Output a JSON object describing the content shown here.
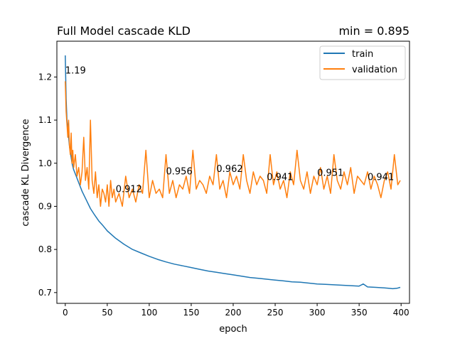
{
  "chart_data": {
    "type": "line",
    "title": "Full Model cascade KLD",
    "title_right": "min = 0.895",
    "xlabel": "epoch",
    "ylabel": "cascade KL Divergence",
    "xlim": [
      -10,
      410
    ],
    "ylim": [
      0.675,
      1.283
    ],
    "xticks": [
      0,
      50,
      100,
      150,
      200,
      250,
      300,
      350,
      400
    ],
    "yticks": [
      0.7,
      0.8,
      0.9,
      1.0,
      1.1,
      1.2
    ],
    "ytick_labels": [
      "0.7",
      "0.8",
      "0.9",
      "1.0",
      "1.1",
      "1.2"
    ],
    "grid": false,
    "legend_position": "top-right",
    "series": [
      {
        "name": "train",
        "color": "#1f77b4",
        "x": [
          0,
          1,
          2,
          3,
          5,
          8,
          10,
          12,
          15,
          20,
          25,
          30,
          35,
          40,
          45,
          50,
          60,
          70,
          80,
          90,
          100,
          110,
          120,
          130,
          140,
          150,
          160,
          170,
          180,
          190,
          200,
          210,
          220,
          230,
          240,
          250,
          260,
          270,
          280,
          290,
          300,
          310,
          320,
          330,
          340,
          350,
          355,
          360,
          370,
          380,
          385,
          390,
          395,
          399
        ],
        "y": [
          1.25,
          1.15,
          1.1,
          1.08,
          1.04,
          1.0,
          0.985,
          0.975,
          0.96,
          0.935,
          0.915,
          0.895,
          0.88,
          0.866,
          0.855,
          0.843,
          0.826,
          0.812,
          0.8,
          0.792,
          0.784,
          0.777,
          0.771,
          0.766,
          0.762,
          0.758,
          0.754,
          0.75,
          0.747,
          0.744,
          0.741,
          0.738,
          0.735,
          0.733,
          0.731,
          0.729,
          0.727,
          0.725,
          0.724,
          0.722,
          0.72,
          0.719,
          0.718,
          0.717,
          0.716,
          0.715,
          0.72,
          0.713,
          0.712,
          0.711,
          0.71,
          0.709,
          0.71,
          0.712
        ]
      },
      {
        "name": "validation",
        "color": "#ff7f0e",
        "x": [
          0,
          1,
          2,
          3,
          4,
          5,
          6,
          7,
          8,
          9,
          10,
          12,
          14,
          16,
          18,
          20,
          22,
          24,
          26,
          28,
          30,
          32,
          34,
          36,
          38,
          40,
          42,
          44,
          46,
          48,
          50,
          52,
          54,
          56,
          58,
          60,
          64,
          68,
          72,
          76,
          80,
          84,
          88,
          92,
          96,
          100,
          104,
          108,
          112,
          116,
          120,
          124,
          128,
          132,
          136,
          140,
          144,
          148,
          152,
          156,
          160,
          164,
          168,
          172,
          176,
          180,
          184,
          188,
          192,
          196,
          200,
          204,
          208,
          212,
          216,
          220,
          224,
          228,
          232,
          236,
          240,
          244,
          248,
          252,
          256,
          260,
          264,
          268,
          272,
          276,
          280,
          284,
          288,
          292,
          296,
          300,
          304,
          308,
          312,
          316,
          320,
          324,
          328,
          332,
          336,
          340,
          344,
          348,
          352,
          356,
          360,
          364,
          368,
          372,
          376,
          380,
          384,
          388,
          392,
          396,
          399
        ],
        "y": [
          1.19,
          1.12,
          1.09,
          1.06,
          1.1,
          1.04,
          1.02,
          1.07,
          1.0,
          1.03,
          0.99,
          1.02,
          0.97,
          0.99,
          0.95,
          0.98,
          1.06,
          0.96,
          0.99,
          0.94,
          1.1,
          0.96,
          0.93,
          0.98,
          0.92,
          0.95,
          0.9,
          0.94,
          0.93,
          0.91,
          0.95,
          0.9,
          0.96,
          0.92,
          0.94,
          0.91,
          0.93,
          0.9,
          0.97,
          0.92,
          0.94,
          0.91,
          0.95,
          0.93,
          1.03,
          0.92,
          0.96,
          0.93,
          0.94,
          0.92,
          1.02,
          0.93,
          0.96,
          0.92,
          0.95,
          0.94,
          0.97,
          0.93,
          1.03,
          0.94,
          0.96,
          0.95,
          0.93,
          0.97,
          0.95,
          1.02,
          0.94,
          0.96,
          0.92,
          0.98,
          0.95,
          0.97,
          0.94,
          1.02,
          0.96,
          0.93,
          0.98,
          0.95,
          0.97,
          0.96,
          0.93,
          1.02,
          0.95,
          0.98,
          0.94,
          0.96,
          0.92,
          0.98,
          0.95,
          1.03,
          0.96,
          0.94,
          0.98,
          0.93,
          0.97,
          0.95,
          0.99,
          0.94,
          0.97,
          0.93,
          1.02,
          0.96,
          0.94,
          0.98,
          0.95,
          0.99,
          0.93,
          0.97,
          0.96,
          0.95,
          0.98,
          0.94,
          0.97,
          0.95,
          0.92,
          0.96,
          0.98,
          0.94,
          1.02,
          0.95,
          0.96
        ]
      }
    ],
    "annotations": [
      {
        "x": 0,
        "y": 1.208,
        "text": "1.19"
      },
      {
        "x": 60,
        "y": 0.933,
        "text": "0.912"
      },
      {
        "x": 120,
        "y": 0.974,
        "text": "0.956"
      },
      {
        "x": 180,
        "y": 0.98,
        "text": "0.962"
      },
      {
        "x": 240,
        "y": 0.961,
        "text": "0.941"
      },
      {
        "x": 300,
        "y": 0.971,
        "text": "0.951"
      },
      {
        "x": 360,
        "y": 0.961,
        "text": "0.941"
      }
    ]
  }
}
